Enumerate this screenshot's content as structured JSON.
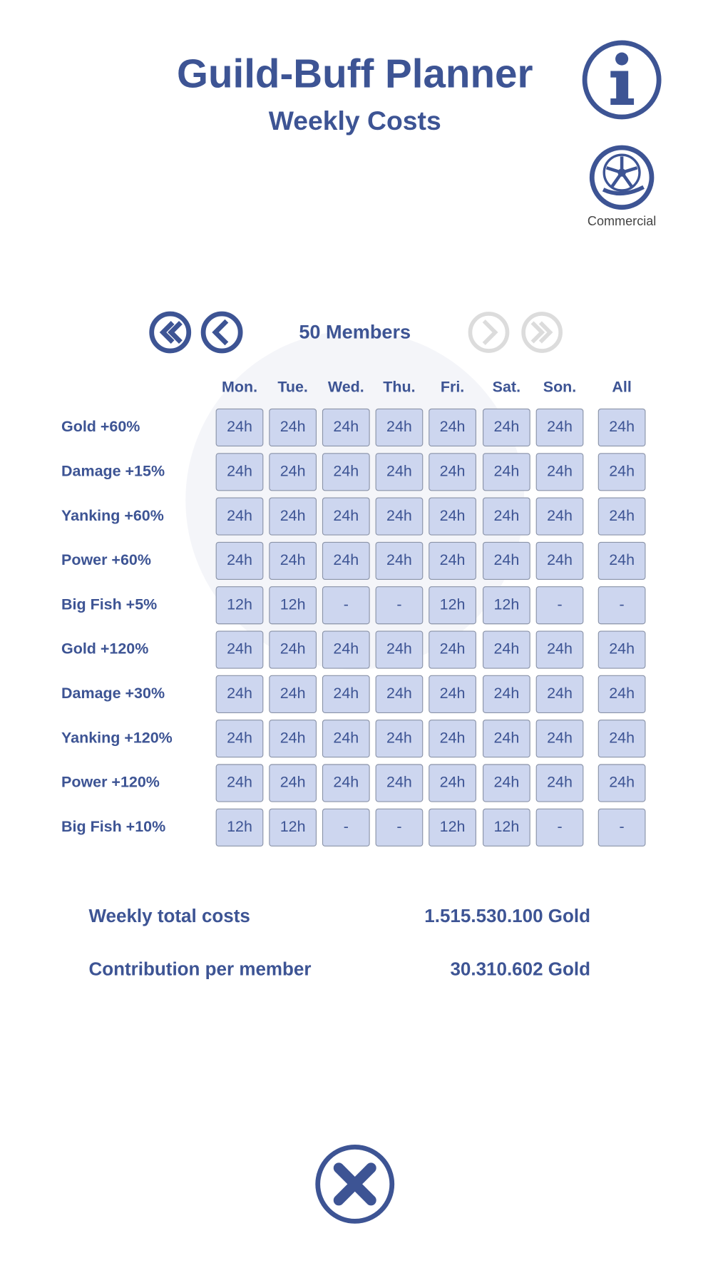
{
  "header": {
    "title": "Guild-Buff Planner",
    "subtitle": "Weekly Costs",
    "commercial": "Commercial"
  },
  "nav": {
    "members": "50 Members"
  },
  "table": {
    "columns": [
      "Mon.",
      "Tue.",
      "Wed.",
      "Thu.",
      "Fri.",
      "Sat.",
      "Son.",
      "All"
    ],
    "rows": [
      {
        "label": "Gold +60%",
        "cells": [
          "24h",
          "24h",
          "24h",
          "24h",
          "24h",
          "24h",
          "24h",
          "24h"
        ]
      },
      {
        "label": "Damage +15%",
        "cells": [
          "24h",
          "24h",
          "24h",
          "24h",
          "24h",
          "24h",
          "24h",
          "24h"
        ]
      },
      {
        "label": "Yanking +60%",
        "cells": [
          "24h",
          "24h",
          "24h",
          "24h",
          "24h",
          "24h",
          "24h",
          "24h"
        ]
      },
      {
        "label": "Power +60%",
        "cells": [
          "24h",
          "24h",
          "24h",
          "24h",
          "24h",
          "24h",
          "24h",
          "24h"
        ]
      },
      {
        "label": "Big Fish +5%",
        "cells": [
          "12h",
          "12h",
          "-",
          "-",
          "12h",
          "12h",
          "-",
          "-"
        ]
      },
      {
        "label": "Gold +120%",
        "cells": [
          "24h",
          "24h",
          "24h",
          "24h",
          "24h",
          "24h",
          "24h",
          "24h"
        ]
      },
      {
        "label": "Damage +30%",
        "cells": [
          "24h",
          "24h",
          "24h",
          "24h",
          "24h",
          "24h",
          "24h",
          "24h"
        ]
      },
      {
        "label": "Yanking +120%",
        "cells": [
          "24h",
          "24h",
          "24h",
          "24h",
          "24h",
          "24h",
          "24h",
          "24h"
        ]
      },
      {
        "label": "Power +120%",
        "cells": [
          "24h",
          "24h",
          "24h",
          "24h",
          "24h",
          "24h",
          "24h",
          "24h"
        ]
      },
      {
        "label": "Big Fish +10%",
        "cells": [
          "12h",
          "12h",
          "-",
          "-",
          "12h",
          "12h",
          "-",
          "-"
        ]
      }
    ]
  },
  "totals": [
    {
      "label": "Weekly total costs",
      "value": "1.515.530.100 Gold"
    },
    {
      "label": "Contribution per member",
      "value": "30.310.602 Gold"
    }
  ]
}
